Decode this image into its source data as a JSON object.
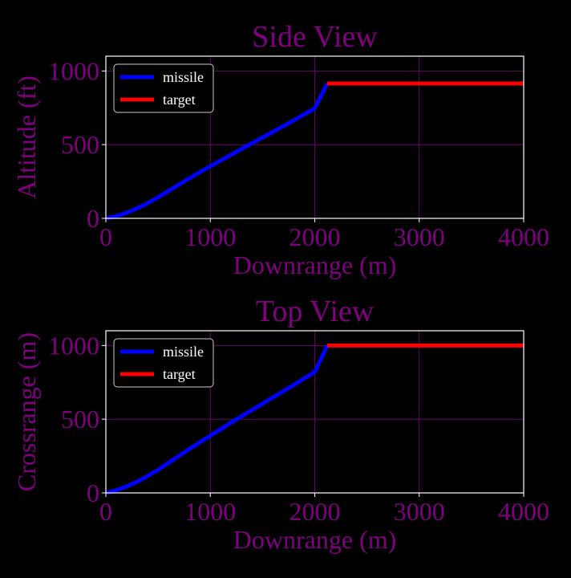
{
  "colors": {
    "background": "#000000",
    "text": "#800080",
    "grid": "#800080",
    "frame": "#ffffff",
    "missile": "#0000ff",
    "target": "#ff0000",
    "legend_text": "#ffffff"
  },
  "chart_data": [
    {
      "type": "line",
      "title": "Side View",
      "xlabel": "Downrange (m)",
      "ylabel": "Altitude (ft)",
      "xlim": [
        0,
        4000
      ],
      "ylim": [
        0,
        1100
      ],
      "xticks": [
        "0",
        "1000",
        "2000",
        "3000",
        "4000"
      ],
      "yticks": [
        "0",
        "500",
        "1000"
      ],
      "grid": true,
      "legend_position": "top-left",
      "series": [
        {
          "name": "missile",
          "color": "#0000ff",
          "x": [
            0,
            100,
            200,
            300,
            400,
            500,
            600,
            700,
            800,
            900,
            1000,
            1200,
            1400,
            1600,
            1800,
            2000,
            2120
          ],
          "y": [
            0,
            15,
            38,
            68,
            103,
            143,
            186,
            229,
            272,
            313,
            354,
            432,
            510,
            587,
            665,
            747,
            915
          ]
        },
        {
          "name": "target",
          "color": "#ff0000",
          "x": [
            2120,
            4000
          ],
          "y": [
            915,
            915
          ]
        }
      ]
    },
    {
      "type": "line",
      "title": "Top View",
      "xlabel": "Downrange (m)",
      "ylabel": "Crossrange (m)",
      "xlim": [
        0,
        4000
      ],
      "ylim": [
        0,
        1100
      ],
      "xticks": [
        "0",
        "1000",
        "2000",
        "3000",
        "4000"
      ],
      "yticks": [
        "0",
        "500",
        "1000"
      ],
      "grid": true,
      "legend_position": "top-left",
      "series": [
        {
          "name": "missile",
          "color": "#0000ff",
          "x": [
            0,
            100,
            200,
            300,
            400,
            500,
            600,
            700,
            800,
            900,
            1000,
            1200,
            1400,
            1600,
            1800,
            2000,
            2120
          ],
          "y": [
            0,
            18,
            44,
            76,
            114,
            157,
            204,
            251,
            298,
            343,
            389,
            477,
            563,
            648,
            733,
            820,
            1000
          ]
        },
        {
          "name": "target",
          "color": "#ff0000",
          "x": [
            2120,
            4000
          ],
          "y": [
            1000,
            1000
          ]
        }
      ]
    }
  ]
}
